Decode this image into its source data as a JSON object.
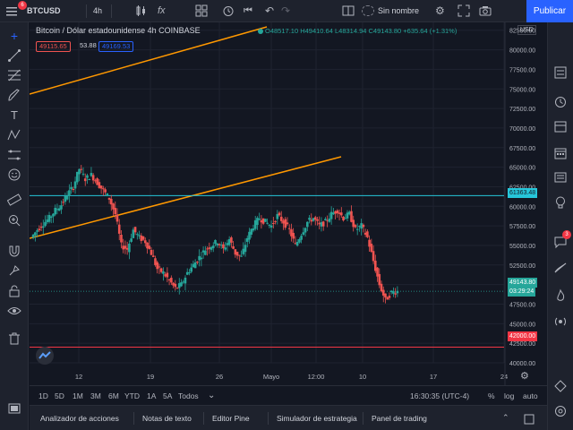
{
  "topbar": {
    "notification_count": "6",
    "symbol": "BTCUSD",
    "interval": "4h",
    "layout_name": "Sin nombre",
    "publish_label": "Publicar"
  },
  "legend": {
    "title": "Bitcoin / Dólar estadounidense  4h  COINBASE",
    "ohlc": "O48517.10 H49410.64 L48314.94 C49143.80 +635.64 (+1.31%)",
    "bid": "49115.65",
    "spread": "53.88",
    "ask": "49169.53"
  },
  "chart_data": {
    "type": "candlestick",
    "title": "Bitcoin / Dólar estadounidense",
    "interval": "4h",
    "exchange": "COINBASE",
    "currency": "USD",
    "ylim": [
      40000,
      83500
    ],
    "y_ticks": [
      "82500.00",
      "80000.00",
      "77500.00",
      "75000.00",
      "72500.00",
      "70000.00",
      "67500.00",
      "65000.00",
      "62500.00",
      "60000.00",
      "57500.00",
      "55000.00",
      "52500.00",
      "50000.00",
      "47500.00",
      "45000.00",
      "42500.00",
      "40000.00"
    ],
    "x_ticks": [
      "12",
      "19",
      "26",
      "Mayo",
      "12:00",
      "10",
      "17",
      "24"
    ],
    "last_price": "49143.80",
    "countdown": "03:29:24",
    "horizontal_lines": [
      {
        "price": "61363.48",
        "color": "#26c6da"
      },
      {
        "price": "42000.00",
        "color": "#f23645"
      }
    ],
    "trend_lines_color": "#ff9800",
    "up_color": "#26a69a",
    "down_color": "#ef5350",
    "price_path": [
      56000,
      57000,
      57800,
      58500,
      59500,
      60200,
      61500,
      62500,
      64800,
      63500,
      64000,
      63000,
      62000,
      61000,
      59000,
      55000,
      54500,
      57000,
      56000,
      55500,
      54000,
      52000,
      51500,
      50500,
      49500,
      50000,
      51500,
      52500,
      53500,
      54500,
      55000,
      55500,
      54500,
      55800,
      54000,
      53500,
      56000,
      57500,
      58500,
      58000,
      57500,
      58800,
      58000,
      57000,
      55000,
      56500,
      58000,
      58500,
      57500,
      58000,
      59000,
      59500,
      58500,
      59000,
      57000,
      57500,
      56000,
      53000,
      50000,
      48000,
      49000,
      49143.8
    ]
  },
  "timebar": {
    "ranges": [
      "1D",
      "5D",
      "1M",
      "3M",
      "6M",
      "YTD",
      "1A",
      "5A",
      "Todos"
    ],
    "clock": "16:30:35 (UTC-4)",
    "percent": "%",
    "log": "log",
    "auto": "auto"
  },
  "panels": [
    "Analizador de acciones",
    "Notas de texto",
    "Editor Pine",
    "Simulador de estrategia",
    "Panel de trading"
  ],
  "right_badge": "3"
}
